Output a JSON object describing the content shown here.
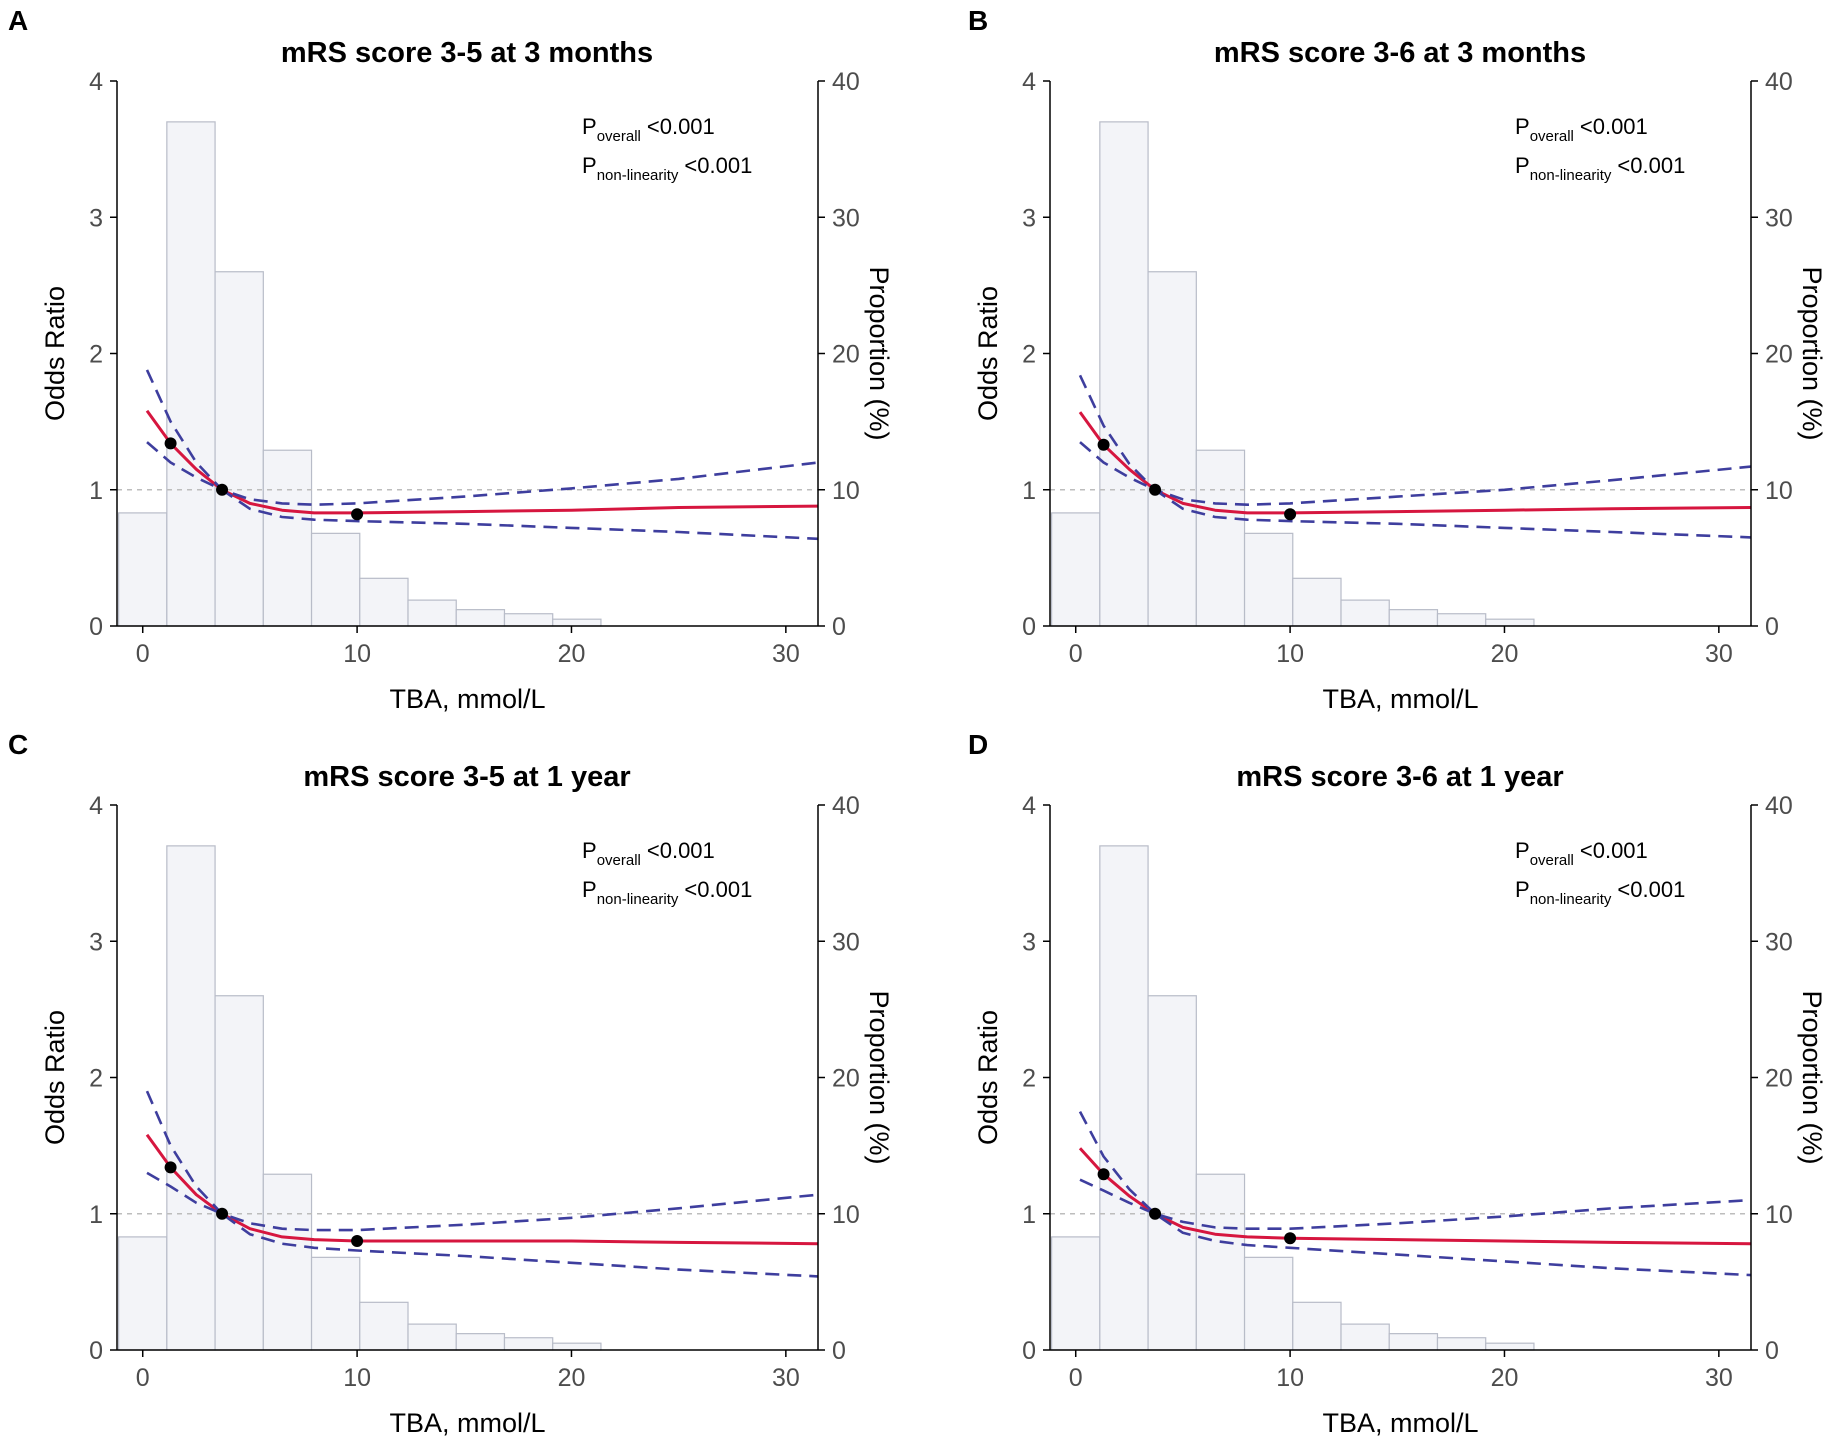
{
  "colors": {
    "spline": "#d6163f",
    "ci": "#3e3e9e",
    "bar_fill": "#f3f4f8",
    "bar_stroke": "#b8bcc8",
    "reference_line": "#bdbdbd",
    "point": "#000000",
    "axis": "#000000"
  },
  "chart_data": [
    {
      "panel": "A",
      "type": "line",
      "title": "mRS score 3-5 at 3 months",
      "xlabel": "TBA, mmol/L",
      "ylabel": "Odds Ratio",
      "y2label": "Proportion (%)",
      "xlim": [
        -1.2,
        31.5
      ],
      "ylim": [
        0,
        4
      ],
      "y2lim": [
        0,
        40
      ],
      "xticks": [
        0,
        10,
        20,
        30
      ],
      "yticks": [
        0,
        1,
        2,
        3,
        4
      ],
      "y2ticks": [
        0,
        10,
        20,
        30,
        40
      ],
      "reference_line": 1,
      "annotations": [
        {
          "p": "P",
          "sub": "overall",
          "value": "<0.001"
        },
        {
          "p": "P",
          "sub": "non-linearity",
          "value": "<0.001"
        }
      ],
      "histogram": {
        "bin_width": 2.25,
        "bin_starts": [
          -1.125,
          1.125,
          3.375,
          5.625,
          7.875,
          10.125,
          12.375,
          14.625,
          16.875,
          19.125
        ],
        "proportions": [
          8.3,
          37.0,
          26.0,
          12.9,
          6.8,
          3.5,
          1.9,
          1.2,
          0.9,
          0.5
        ]
      },
      "series": [
        {
          "name": "OR",
          "style": "solid",
          "x": [
            0.2,
            1.3,
            2.5,
            3.7,
            5,
            6.5,
            8,
            10,
            15,
            20,
            25,
            31.5
          ],
          "values": [
            1.58,
            1.34,
            1.15,
            1.0,
            0.9,
            0.85,
            0.83,
            0.83,
            0.84,
            0.85,
            0.87,
            0.88
          ]
        },
        {
          "name": "Upper 95% CI",
          "style": "dashed",
          "x": [
            0.2,
            1.3,
            2.5,
            3.7,
            5,
            6.5,
            8,
            10,
            15,
            20,
            25,
            31.5
          ],
          "values": [
            1.88,
            1.5,
            1.2,
            1.0,
            0.93,
            0.9,
            0.89,
            0.9,
            0.95,
            1.01,
            1.08,
            1.2
          ]
        },
        {
          "name": "Lower 95% CI",
          "style": "dashed",
          "x": [
            0.2,
            1.3,
            2.5,
            3.7,
            5,
            6.5,
            8,
            10,
            15,
            20,
            25,
            31.5
          ],
          "values": [
            1.35,
            1.2,
            1.09,
            1.0,
            0.86,
            0.8,
            0.78,
            0.77,
            0.75,
            0.72,
            0.69,
            0.64
          ]
        }
      ],
      "points": {
        "x": [
          1.3,
          3.7,
          10
        ],
        "y": [
          1.34,
          1.0,
          0.82
        ]
      }
    },
    {
      "panel": "B",
      "type": "line",
      "title": "mRS score 3-6 at 3 months",
      "xlabel": "TBA, mmol/L",
      "ylabel": "Odds Ratio",
      "y2label": "Proportion (%)",
      "xlim": [
        -1.2,
        31.5
      ],
      "ylim": [
        0,
        4
      ],
      "y2lim": [
        0,
        40
      ],
      "xticks": [
        0,
        10,
        20,
        30
      ],
      "yticks": [
        0,
        1,
        2,
        3,
        4
      ],
      "y2ticks": [
        0,
        10,
        20,
        30,
        40
      ],
      "reference_line": 1,
      "annotations": [
        {
          "p": "P",
          "sub": "overall",
          "value": "<0.001"
        },
        {
          "p": "P",
          "sub": "non-linearity",
          "value": "<0.001"
        }
      ],
      "histogram": {
        "bin_width": 2.25,
        "bin_starts": [
          -1.125,
          1.125,
          3.375,
          5.625,
          7.875,
          10.125,
          12.375,
          14.625,
          16.875,
          19.125
        ],
        "proportions": [
          8.3,
          37.0,
          26.0,
          12.9,
          6.8,
          3.5,
          1.9,
          1.2,
          0.9,
          0.5
        ]
      },
      "series": [
        {
          "name": "OR",
          "style": "solid",
          "x": [
            0.2,
            1.3,
            2.5,
            3.7,
            5,
            6.5,
            8,
            10,
            15,
            20,
            25,
            31.5
          ],
          "values": [
            1.57,
            1.33,
            1.15,
            1.0,
            0.9,
            0.85,
            0.83,
            0.83,
            0.84,
            0.85,
            0.86,
            0.87
          ]
        },
        {
          "name": "Upper 95% CI",
          "style": "dashed",
          "x": [
            0.2,
            1.3,
            2.5,
            3.7,
            5,
            6.5,
            8,
            10,
            15,
            20,
            25,
            31.5
          ],
          "values": [
            1.84,
            1.47,
            1.19,
            1.0,
            0.93,
            0.9,
            0.89,
            0.9,
            0.95,
            1.0,
            1.07,
            1.17
          ]
        },
        {
          "name": "Lower 95% CI",
          "style": "dashed",
          "x": [
            0.2,
            1.3,
            2.5,
            3.7,
            5,
            6.5,
            8,
            10,
            15,
            20,
            25,
            31.5
          ],
          "values": [
            1.35,
            1.2,
            1.09,
            1.0,
            0.86,
            0.8,
            0.78,
            0.77,
            0.75,
            0.72,
            0.69,
            0.65
          ]
        }
      ],
      "points": {
        "x": [
          1.3,
          3.7,
          10
        ],
        "y": [
          1.33,
          1.0,
          0.82
        ]
      }
    },
    {
      "panel": "C",
      "type": "line",
      "title": "mRS score 3-5 at 1 year",
      "xlabel": "TBA, mmol/L",
      "ylabel": "Odds Ratio",
      "y2label": "Proportion (%)",
      "xlim": [
        -1.2,
        31.5
      ],
      "ylim": [
        0,
        4
      ],
      "y2lim": [
        0,
        40
      ],
      "xticks": [
        0,
        10,
        20,
        30
      ],
      "yticks": [
        0,
        1,
        2,
        3,
        4
      ],
      "y2ticks": [
        0,
        10,
        20,
        30,
        40
      ],
      "reference_line": 1,
      "annotations": [
        {
          "p": "P",
          "sub": "overall",
          "value": "<0.001"
        },
        {
          "p": "P",
          "sub": "non-linearity",
          "value": "<0.001"
        }
      ],
      "histogram": {
        "bin_width": 2.25,
        "bin_starts": [
          -1.125,
          1.125,
          3.375,
          5.625,
          7.875,
          10.125,
          12.375,
          14.625,
          16.875,
          19.125
        ],
        "proportions": [
          8.3,
          37.0,
          26.0,
          12.9,
          6.8,
          3.5,
          1.9,
          1.2,
          0.9,
          0.5
        ]
      },
      "series": [
        {
          "name": "OR",
          "style": "solid",
          "x": [
            0.2,
            1.3,
            2.5,
            3.7,
            5,
            6.5,
            8,
            10,
            15,
            20,
            25,
            31.5
          ],
          "values": [
            1.58,
            1.34,
            1.14,
            1.0,
            0.89,
            0.83,
            0.81,
            0.8,
            0.8,
            0.8,
            0.79,
            0.78
          ]
        },
        {
          "name": "Upper 95% CI",
          "style": "dashed",
          "x": [
            0.2,
            1.3,
            2.5,
            3.7,
            5,
            6.5,
            8,
            10,
            15,
            20,
            25,
            31.5
          ],
          "values": [
            1.9,
            1.5,
            1.2,
            1.0,
            0.93,
            0.89,
            0.88,
            0.88,
            0.92,
            0.97,
            1.04,
            1.14
          ]
        },
        {
          "name": "Lower 95% CI",
          "style": "dashed",
          "x": [
            0.2,
            1.3,
            2.5,
            3.7,
            5,
            6.5,
            8,
            10,
            15,
            20,
            25,
            31.5
          ],
          "values": [
            1.3,
            1.2,
            1.08,
            1.0,
            0.85,
            0.78,
            0.75,
            0.73,
            0.69,
            0.64,
            0.59,
            0.54
          ]
        }
      ],
      "points": {
        "x": [
          1.3,
          3.7,
          10
        ],
        "y": [
          1.34,
          1.0,
          0.8
        ]
      }
    },
    {
      "panel": "D",
      "type": "line",
      "title": "mRS score 3-6 at 1 year",
      "xlabel": "TBA, mmol/L",
      "ylabel": "Odds Ratio",
      "y2label": "Proportion (%)",
      "xlim": [
        -1.2,
        31.5
      ],
      "ylim": [
        0,
        4
      ],
      "y2lim": [
        0,
        40
      ],
      "xticks": [
        0,
        10,
        20,
        30
      ],
      "yticks": [
        0,
        1,
        2,
        3,
        4
      ],
      "y2ticks": [
        0,
        10,
        20,
        30,
        40
      ],
      "reference_line": 1,
      "annotations": [
        {
          "p": "P",
          "sub": "overall",
          "value": "<0.001"
        },
        {
          "p": "P",
          "sub": "non-linearity",
          "value": "<0.001"
        }
      ],
      "histogram": {
        "bin_width": 2.25,
        "bin_starts": [
          -1.125,
          1.125,
          3.375,
          5.625,
          7.875,
          10.125,
          12.375,
          14.625,
          16.875,
          19.125
        ],
        "proportions": [
          8.3,
          37.0,
          26.0,
          12.9,
          6.8,
          3.5,
          1.9,
          1.2,
          0.9,
          0.5
        ]
      },
      "series": [
        {
          "name": "OR",
          "style": "solid",
          "x": [
            0.2,
            1.3,
            2.5,
            3.7,
            5,
            6.5,
            8,
            10,
            15,
            20,
            25,
            31.5
          ],
          "values": [
            1.48,
            1.29,
            1.13,
            1.0,
            0.9,
            0.85,
            0.83,
            0.82,
            0.81,
            0.8,
            0.79,
            0.78
          ]
        },
        {
          "name": "Upper 95% CI",
          "style": "dashed",
          "x": [
            0.2,
            1.3,
            2.5,
            3.7,
            5,
            6.5,
            8,
            10,
            15,
            20,
            25,
            31.5
          ],
          "values": [
            1.75,
            1.42,
            1.18,
            1.0,
            0.94,
            0.9,
            0.89,
            0.89,
            0.93,
            0.98,
            1.04,
            1.1
          ]
        },
        {
          "name": "Lower 95% CI",
          "style": "dashed",
          "x": [
            0.2,
            1.3,
            2.5,
            3.7,
            5,
            6.5,
            8,
            10,
            15,
            20,
            25,
            31.5
          ],
          "values": [
            1.25,
            1.17,
            1.08,
            1.0,
            0.86,
            0.8,
            0.77,
            0.75,
            0.7,
            0.65,
            0.6,
            0.55
          ]
        }
      ],
      "points": {
        "x": [
          1.3,
          3.7,
          10
        ],
        "y": [
          1.29,
          1.0,
          0.82
        ]
      }
    }
  ]
}
